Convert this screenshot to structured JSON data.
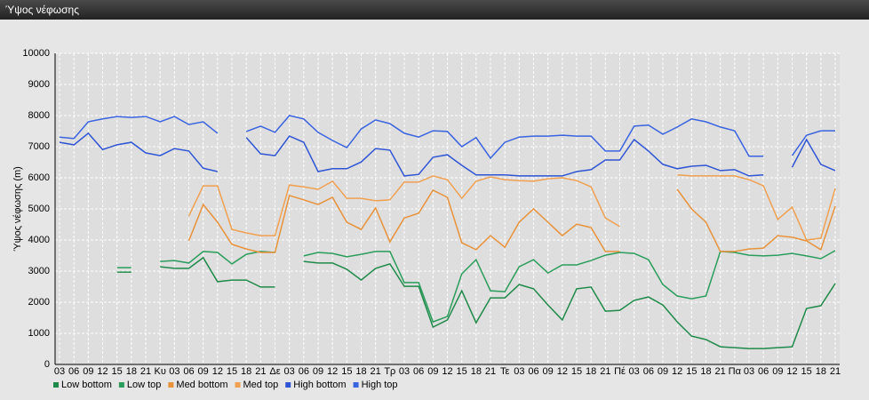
{
  "chart_data": {
    "type": "line",
    "title": "Ύψος νέφωσης",
    "y_label": "Ύψος νέφωσης (m)",
    "categories": [
      "03",
      "06",
      "09",
      "12",
      "15",
      "18",
      "21",
      "Κυ",
      "03",
      "06",
      "09",
      "12",
      "15",
      "18",
      "21",
      "Δε",
      "03",
      "06",
      "09",
      "12",
      "15",
      "18",
      "21",
      "Τρ",
      "03",
      "06",
      "09",
      "12",
      "15",
      "18",
      "21",
      "Τε",
      "03",
      "06",
      "09",
      "12",
      "15",
      "18",
      "21",
      "Πέ",
      "03",
      "06",
      "09",
      "12",
      "15",
      "18",
      "21",
      "Πα",
      "03",
      "06",
      "09",
      "12",
      "15",
      "18",
      "21"
    ],
    "ylim": [
      0,
      10000
    ],
    "yticks": [
      0,
      1000,
      2000,
      3000,
      4000,
      5000,
      6000,
      7000,
      8000,
      9000,
      10000
    ],
    "grid": true,
    "series": [
      {
        "name": "Low bottom",
        "color": "#1e8a4a",
        "values": [
          null,
          null,
          null,
          null,
          2970,
          2970,
          null,
          3140,
          3090,
          3090,
          3430,
          2660,
          2710,
          2710,
          2490,
          2490,
          null,
          3310,
          3260,
          3260,
          3060,
          2710,
          3090,
          3230,
          2510,
          2510,
          1200,
          1430,
          2370,
          1340,
          2140,
          2140,
          2570,
          2430,
          1910,
          1430,
          2430,
          2490,
          1710,
          1740,
          2060,
          2170,
          1910,
          1370,
          910,
          800,
          570,
          540,
          510,
          510,
          540,
          570,
          1800,
          1890,
          2600
        ]
      },
      {
        "name": "Low top",
        "color": "#2a9d5c",
        "values": [
          null,
          null,
          null,
          null,
          3110,
          3110,
          null,
          3310,
          3340,
          3260,
          3630,
          3600,
          3230,
          3540,
          3630,
          3600,
          null,
          3490,
          3600,
          3570,
          3460,
          3540,
          3630,
          3630,
          2630,
          2630,
          1370,
          1540,
          2910,
          3370,
          2370,
          2340,
          3140,
          3370,
          2940,
          3200,
          3200,
          3340,
          3510,
          3600,
          3570,
          3370,
          2570,
          2200,
          2110,
          2200,
          3630,
          3600,
          3510,
          3490,
          3510,
          3570,
          3490,
          3400,
          3660
        ]
      },
      {
        "name": "Med bottom",
        "color": "#e8923a",
        "values": [
          null,
          null,
          null,
          null,
          null,
          null,
          null,
          null,
          null,
          3970,
          5140,
          4570,
          3860,
          3710,
          3600,
          3600,
          5430,
          5290,
          5140,
          5370,
          4570,
          4340,
          5030,
          3940,
          4710,
          4860,
          5600,
          5370,
          3910,
          3690,
          4140,
          3770,
          4570,
          5000,
          4570,
          4140,
          4510,
          4400,
          3630,
          3630,
          null,
          null,
          null,
          5630,
          5000,
          4570,
          3630,
          3630,
          3710,
          3740,
          4140,
          4090,
          3970,
          3690,
          5090
        ]
      },
      {
        "name": "Med top",
        "color": "#f0a050",
        "values": [
          null,
          null,
          null,
          null,
          null,
          null,
          null,
          null,
          null,
          4770,
          5740,
          5740,
          4340,
          4230,
          4140,
          4140,
          5770,
          5710,
          5630,
          5890,
          5340,
          5340,
          5260,
          5290,
          5860,
          5860,
          6060,
          5940,
          5340,
          5890,
          6030,
          5940,
          5910,
          5890,
          5970,
          6000,
          5910,
          5710,
          4710,
          4430,
          null,
          null,
          null,
          6090,
          6060,
          6060,
          6060,
          6060,
          5940,
          5740,
          4660,
          5060,
          4000,
          4060,
          5660
        ]
      },
      {
        "name": "High bottom",
        "color": "#2f55d4",
        "values": [
          7140,
          7060,
          7430,
          6910,
          7060,
          7140,
          6800,
          6710,
          6940,
          6860,
          6310,
          6200,
          null,
          7290,
          6770,
          6710,
          7340,
          7140,
          6200,
          6290,
          6290,
          6510,
          6940,
          6890,
          6060,
          6110,
          6660,
          6740,
          6400,
          6090,
          6090,
          6090,
          6060,
          6060,
          6060,
          6060,
          6200,
          6260,
          6570,
          6570,
          7230,
          6860,
          6430,
          6290,
          6370,
          6400,
          6230,
          6260,
          6060,
          6090,
          null,
          6340,
          7230,
          6430,
          6230
        ]
      },
      {
        "name": "High top",
        "color": "#3a63e0",
        "values": [
          7310,
          7260,
          7800,
          7890,
          7970,
          7940,
          7970,
          7800,
          7970,
          7710,
          7800,
          7430,
          null,
          7490,
          7660,
          7460,
          8000,
          7890,
          7460,
          7200,
          6970,
          7570,
          7860,
          7740,
          7430,
          7310,
          7510,
          7490,
          7000,
          7290,
          6630,
          7140,
          7310,
          7340,
          7340,
          7370,
          7340,
          7340,
          6860,
          6860,
          7660,
          7690,
          7400,
          7630,
          7890,
          7800,
          7630,
          7510,
          6690,
          6690,
          null,
          6710,
          7370,
          7510,
          7510
        ]
      }
    ]
  }
}
